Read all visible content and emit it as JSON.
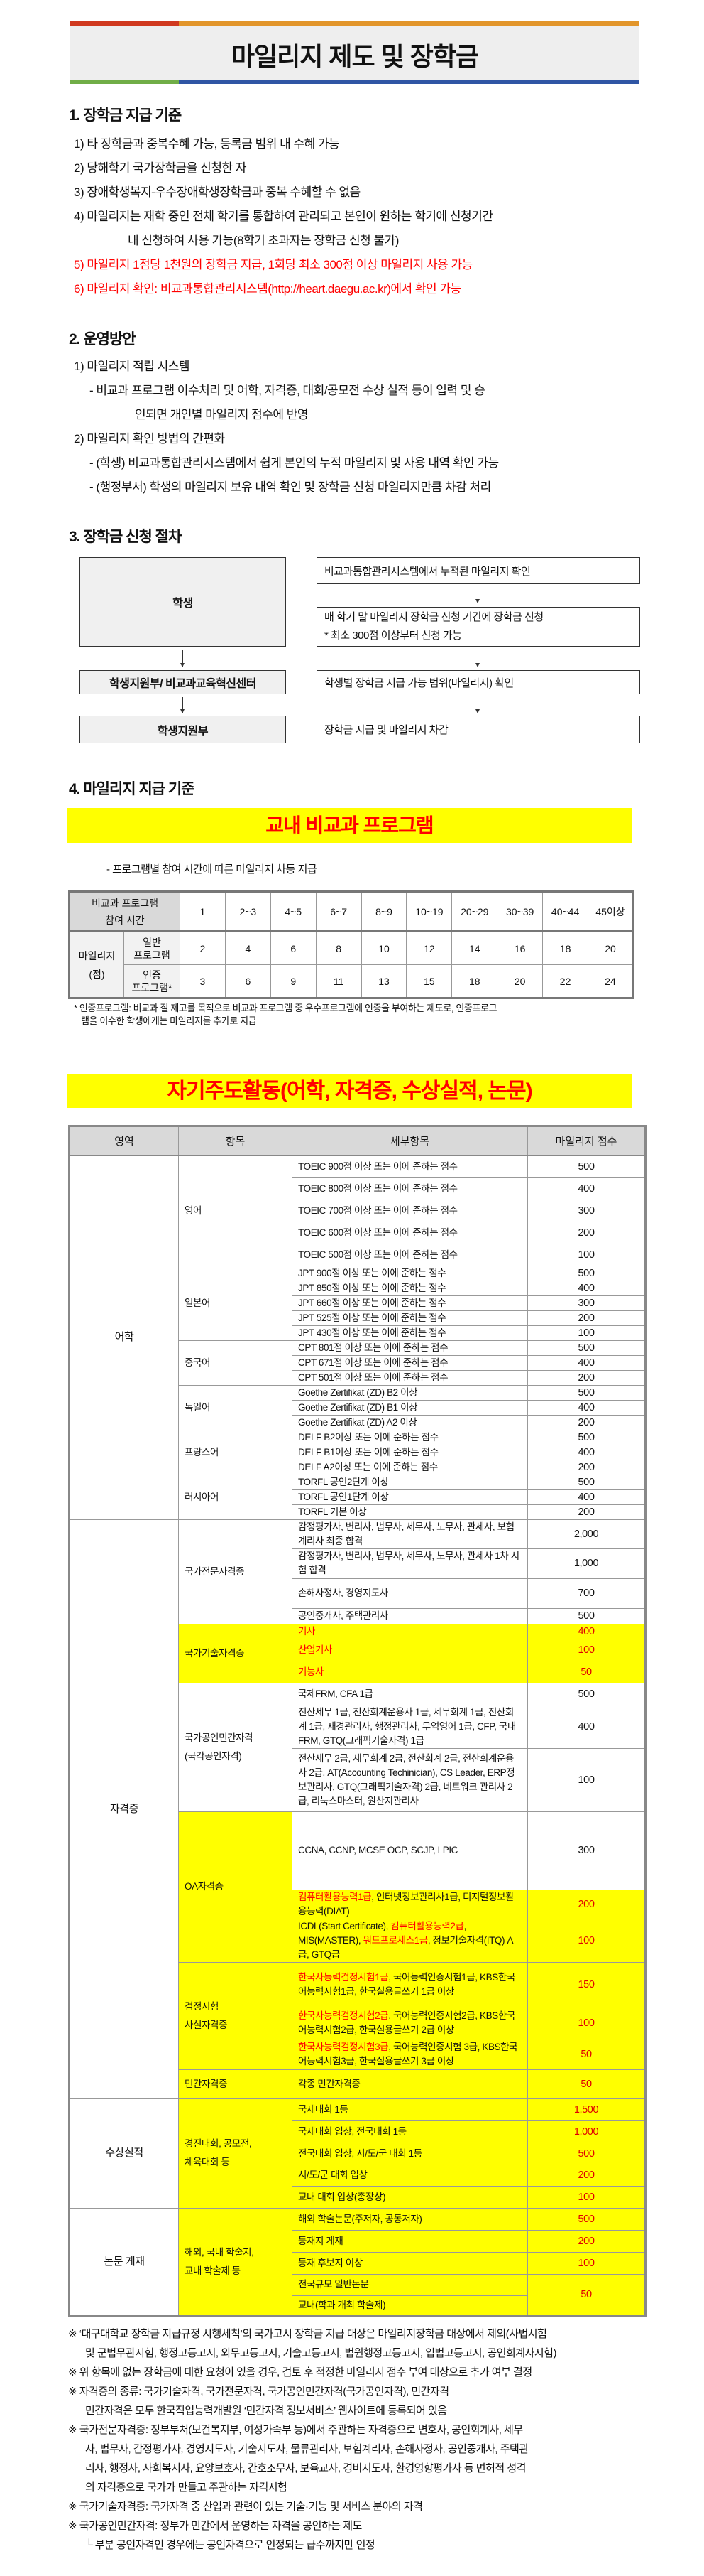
{
  "title": "마일리지 제도 및 장학금",
  "colors": {
    "bar_red": "#d0391f",
    "bar_orange": "#e2952a",
    "bar_green": "#70ad47",
    "bar_blue": "#2f55a4",
    "highlight": "#ffff00",
    "accent_red": "#ff0000"
  },
  "section1": {
    "heading": "1. 장학금 지급 기준",
    "items": [
      {
        "text": "1) 타 장학금과 중복수혜 가능, 등록금 범위 내 수혜 가능",
        "red": false
      },
      {
        "text": "2) 당해학기 국가장학금을 신청한 자",
        "red": false
      },
      {
        "text": "3) 장애학생복지-우수장애학생장학금과 중복 수혜할 수 없음",
        "red": false
      },
      {
        "text": "4) 마일리지는 재학 중인 전체 학기를 통합하여 관리되고 본인이 원하는 학기에 신청기간",
        "cont": "내 신청하여 사용 가능(8학기 초과자는 장학금 신청 불가)",
        "red": false
      },
      {
        "text": "5) 마일리지 1점당 1천원의 장학금 지급, 1회당 최소 300점 이상 마일리지 사용 가능",
        "red": true
      },
      {
        "text": "6) 마일리지 확인: 비교과통합관리시스템(http://heart.daegu.ac.kr)에서 확인 가능",
        "red": true
      }
    ]
  },
  "section2": {
    "heading": "2. 운영방안",
    "lines": [
      {
        "text": "1) 마일리지 적립 시스템",
        "level": 1
      },
      {
        "text": "- 비교과 프로그램 이수처리 및 어학, 자격증, 대회/공모전 수상 실적 등이 입력 및 승",
        "level": 2
      },
      {
        "text": "인되면 개인별 마일리지 점수에 반영",
        "level": 3
      },
      {
        "text": "2) 마일리지 확인 방법의 간편화",
        "level": 1
      },
      {
        "text": "- (학생) 비교과통합관리시스템에서 쉽게 본인의 누적 마일리지 및 사용 내역 확인 가능",
        "level": 2
      },
      {
        "text": "- (행정부서) 학생의 마일리지 보유 내역 확인 및 장학금 신청 마일리지만큼 차감 처리",
        "level": 2
      }
    ]
  },
  "section3": {
    "heading": "3. 장학금 신청 절차",
    "left": [
      "학생",
      "학생지원부/ 비교과교육혁신센터",
      "학생지원부"
    ],
    "right": [
      [
        "비교과통합관리시스템에서 누적된 마일리지 확인"
      ],
      [
        "매 학기 말 마일리지 장학금 신청 기간에 장학금 신청",
        "* 최소 300점 이상부터 신청 가능"
      ],
      [
        "학생별 장학금 지급 가능 범위(마일리지) 확인"
      ],
      [
        "장학금 지급 및 마일리지 차감"
      ]
    ]
  },
  "section4": {
    "heading": "4. 마일리지 지급 기준",
    "program_banner": "교내 비교과 프로그램",
    "program_subtitle": "- 프로그램별 참여 시간에 따른 마일리지 차등 지급",
    "program_table": {
      "hours_label": [
        "비교과 프로그램",
        "참여 시간"
      ],
      "hours": [
        "1",
        "2~3",
        "4~5",
        "6~7",
        "8~9",
        "10~19",
        "20~29",
        "30~39",
        "40~44",
        "45이상"
      ],
      "mileage_label": [
        "마일리지",
        "(점)"
      ],
      "rows": [
        {
          "label": [
            "일반",
            "프로그램"
          ],
          "values": [
            "2",
            "4",
            "6",
            "8",
            "10",
            "12",
            "14",
            "16",
            "18",
            "20"
          ]
        },
        {
          "label": [
            "인증",
            "프로그램*"
          ],
          "values": [
            "3",
            "6",
            "9",
            "11",
            "13",
            "15",
            "18",
            "20",
            "22",
            "24"
          ]
        }
      ]
    },
    "program_footnote": [
      "* 인증프로그램: 비교과 질 제고를 목적으로 비교과 프로그램 중 우수프로그램에 인증을 부여하는 제도로, 인증프로그",
      "램을 이수한 학생에게는 마일리지를 추가로 지급"
    ],
    "self_banner": "자기주도활동(어학, 자격증, 수상실적, 논문)",
    "self_table": {
      "headers": [
        "영역",
        "항목",
        "세부항목",
        "마일리지 점수"
      ],
      "areas": [
        {
          "name": "어학",
          "items": [
            {
              "name": "영어",
              "rows": [
                {
                  "d": [
                    {
                      "t": "TOEIC 900점 이상 또는 이에 준하는 점수"
                    }
                  ],
                  "s": "500"
                },
                {
                  "d": [
                    {
                      "t": "TOEIC 800점 이상 또는 이에 준하는 점수"
                    }
                  ],
                  "s": "400"
                },
                {
                  "d": [
                    {
                      "t": "TOEIC 700점 이상 또는 이에 준하는 점수"
                    }
                  ],
                  "s": "300"
                },
                {
                  "d": [
                    {
                      "t": "TOEIC 600점 이상 또는 이에 준하는 점수"
                    }
                  ],
                  "s": "200"
                },
                {
                  "d": [
                    {
                      "t": "TOEIC 500점 이상 또는 이에 준하는 점수"
                    }
                  ],
                  "s": "100"
                }
              ]
            },
            {
              "name": "일본어",
              "rows": [
                {
                  "d": [
                    {
                      "t": "JPT 900점 이상 또는 이에 준하는 점수"
                    }
                  ],
                  "s": "500"
                },
                {
                  "d": [
                    {
                      "t": "JPT 850점 이상 또는 이에 준하는 점수"
                    }
                  ],
                  "s": "400"
                },
                {
                  "d": [
                    {
                      "t": "JPT 660점 이상 또는 이에 준하는 점수"
                    }
                  ],
                  "s": "300"
                },
                {
                  "d": [
                    {
                      "t": "JPT 525점 이상 또는 이에 준하는 점수"
                    }
                  ],
                  "s": "200"
                },
                {
                  "d": [
                    {
                      "t": "JPT 430점 이상 또는 이에 준하는 점수"
                    }
                  ],
                  "s": "100"
                }
              ]
            },
            {
              "name": "중국어",
              "rows": [
                {
                  "d": [
                    {
                      "t": "CPT 801점 이상 또는 이에 준하는 점수"
                    }
                  ],
                  "s": "500"
                },
                {
                  "d": [
                    {
                      "t": "CPT 671점 이상 또는 이에 준하는 점수"
                    }
                  ],
                  "s": "400"
                },
                {
                  "d": [
                    {
                      "t": "CPT 501점 이상 또는 이에 준하는 점수"
                    }
                  ],
                  "s": "200"
                }
              ]
            },
            {
              "name": "독일어",
              "rows": [
                {
                  "d": [
                    {
                      "t": "Goethe Zertifikat (ZD) B2 이상"
                    }
                  ],
                  "s": "500"
                },
                {
                  "d": [
                    {
                      "t": "Goethe Zertifikat (ZD) B1 이상"
                    }
                  ],
                  "s": "400"
                },
                {
                  "d": [
                    {
                      "t": "Goethe Zertifikat (ZD) A2 이상"
                    }
                  ],
                  "s": "200"
                }
              ]
            },
            {
              "name": "프랑스어",
              "rows": [
                {
                  "d": [
                    {
                      "t": "DELF B2이상 또는 이에 준하는 점수"
                    }
                  ],
                  "s": "500"
                },
                {
                  "d": [
                    {
                      "t": "DELF B1이상 또는 이에 준하는 점수"
                    }
                  ],
                  "s": "400"
                },
                {
                  "d": [
                    {
                      "t": "DELF A2이상 또는 이에 준하는 점수"
                    }
                  ],
                  "s": "200"
                }
              ]
            },
            {
              "name": "러시아어",
              "rows": [
                {
                  "d": [
                    {
                      "t": "TORFL 공인2단계 이상"
                    }
                  ],
                  "s": "500"
                },
                {
                  "d": [
                    {
                      "t": "TORFL 공인1단계 이상"
                    }
                  ],
                  "s": "400"
                },
                {
                  "d": [
                    {
                      "t": "TORFL 기본 이상"
                    }
                  ],
                  "s": "200"
                }
              ]
            }
          ]
        },
        {
          "name": "자격증",
          "items": [
            {
              "name": "국가전문자격증",
              "rows": [
                {
                  "d": [
                    {
                      "t": "감정평가사, 변리사, 법무사, 세무사, 노무사, 관세사, 보험계리사 최종 합격"
                    }
                  ],
                  "s": "2,000"
                },
                {
                  "d": [
                    {
                      "t": "감정평가사, 변리사, 법무사, 세무사, 노무사, 관세사 1차 시험 합격"
                    }
                  ],
                  "s": "1,000"
                },
                {
                  "d": [
                    {
                      "t": "손해사정사, 경영지도사"
                    }
                  ],
                  "s": "700"
                },
                {
                  "d": [
                    {
                      "t": "공인중개사, 주택관리사"
                    }
                  ],
                  "s": "500"
                }
              ]
            },
            {
              "name": "국가기술자격증",
              "yellow": true,
              "rows": [
                {
                  "d": [
                    {
                      "t": "기사",
                      "red": true
                    }
                  ],
                  "s": "400",
                  "yellow": true
                },
                {
                  "d": [
                    {
                      "t": "산업기사",
                      "red": true
                    }
                  ],
                  "s": "100",
                  "yellow": true
                },
                {
                  "d": [
                    {
                      "t": "기능사",
                      "red": true
                    }
                  ],
                  "s": "50",
                  "yellow": true
                }
              ]
            },
            {
              "name": "국가공인민간자격\n(국각공인자격)",
              "rows": [
                {
                  "d": [
                    {
                      "t": "국제FRM, CFA 1급"
                    }
                  ],
                  "s": "500"
                },
                {
                  "d": [
                    {
                      "t": "전산세무 1급, 전산회계운용사 1급, 세무회계 1급, 전산회계 1급, 재경관리사, 행정관리사, 무역영어 1급, CFP, 국내FRM, GTQ(그래픽기술자격) 1급"
                    }
                  ],
                  "s": "400"
                },
                {
                  "d": [
                    {
                      "t": "전산세무 2급, 세무회계 2급, 전산회계 2급, 전산회계운용사 2급, AT(Accounting Techinician), CS Leader, ERP정보관리사, GTQ(그래픽기술자격) 2급, 네트워크 관리사 2급, 리눅스마스터, 원산지관리사"
                    }
                  ],
                  "s": "100"
                }
              ]
            },
            {
              "name": "OA자격증",
              "yellow": true,
              "rows": [
                {
                  "d": [
                    {
                      "t": "CCNA, CCNP, MCSE OCP, SCJP, LPIC"
                    }
                  ],
                  "s": "300"
                },
                {
                  "d": [
                    {
                      "t": "컴퓨터활용능력1급",
                      "red": true
                    },
                    {
                      "t": ", 인터넷정보관리사1급, 디지털정보활용능력(DIAT)"
                    }
                  ],
                  "s": "200",
                  "yellow": true
                },
                {
                  "d": [
                    {
                      "t": "ICDL(Start Certificate), "
                    },
                    {
                      "t": "컴퓨터활용능력2급",
                      "red": true
                    },
                    {
                      "t": ", MIS(MASTER), "
                    },
                    {
                      "t": "워드프로세스1급",
                      "red": true
                    },
                    {
                      "t": ", 정보기술자격(ITQ) A급, GTQ급"
                    }
                  ],
                  "s": "100",
                  "yellow": true
                }
              ]
            },
            {
              "name": "검정시험\n사설자격증",
              "yellow": true,
              "rows": [
                {
                  "d": [
                    {
                      "t": "한국사능력검정시험1급",
                      "red": true
                    },
                    {
                      "t": ", 국어능력인증시험1급, KBS한국어능력시험1급, 한국실용글쓰기 1급 이상"
                    }
                  ],
                  "s": "150",
                  "yellow": true
                },
                {
                  "d": [
                    {
                      "t": "한국사능력검정시험2급",
                      "red": true
                    },
                    {
                      "t": ", 국어능력인증시험2급, KBS한국어능력시험2급, 한국실용글쓰기 2급 이상"
                    }
                  ],
                  "s": "100",
                  "yellow": true
                },
                {
                  "d": [
                    {
                      "t": "한국사능력검정시험3급",
                      "red": true
                    },
                    {
                      "t": ", 국어능력인증시험 3급, KBS한국어능력시험3급, 한국실용글쓰기 3급 이상"
                    }
                  ],
                  "s": "50",
                  "yellow": true
                }
              ]
            },
            {
              "name": "민간자격증",
              "yellow": true,
              "rows": [
                {
                  "d": [
                    {
                      "t": "각종 민간자격증"
                    }
                  ],
                  "s": "50",
                  "yellow": true
                }
              ]
            }
          ]
        },
        {
          "name": "수상실적",
          "items": [
            {
              "name": "경진대회, 공모전,\n체육대회 등",
              "yellow": true,
              "rows": [
                {
                  "d": [
                    {
                      "t": "국제대회 1등"
                    }
                  ],
                  "s": "1,500",
                  "yellow": true
                },
                {
                  "d": [
                    {
                      "t": "국제대회 입상, 전국대회 1등"
                    }
                  ],
                  "s": "1,000",
                  "yellow": true
                },
                {
                  "d": [
                    {
                      "t": "전국대회 입상, 시/도/군 대회 1등"
                    }
                  ],
                  "s": "500",
                  "yellow": true
                },
                {
                  "d": [
                    {
                      "t": "시/도/군 대회 입상"
                    }
                  ],
                  "s": "200",
                  "yellow": true
                },
                {
                  "d": [
                    {
                      "t": "교내 대회 입상(총장상)"
                    }
                  ],
                  "s": "100",
                  "yellow": true
                }
              ]
            }
          ]
        },
        {
          "name": "논문 게재",
          "items": [
            {
              "name": "해외, 국내 학술지,\n교내 학술제 등",
              "yellow": true,
              "rows": [
                {
                  "d": [
                    {
                      "t": "해외 학술논문(주저자, 공동저자)"
                    }
                  ],
                  "s": "500",
                  "yellow": true
                },
                {
                  "d": [
                    {
                      "t": "등재지 게재"
                    }
                  ],
                  "s": "200",
                  "yellow": true
                },
                {
                  "d": [
                    {
                      "t": "등재 후보지 이상"
                    }
                  ],
                  "s": "100",
                  "yellow": true
                },
                {
                  "d": [
                    {
                      "t": "전국규모 일반논문"
                    }
                  ],
                  "s": "50",
                  "score_rows": 2,
                  "yellow": true
                },
                {
                  "d": [
                    {
                      "t": "교내(학과 개최 학술제)"
                    }
                  ],
                  "yellow": true
                }
              ]
            }
          ]
        }
      ]
    },
    "notes": [
      [
        "※ ‘대구대학교 장학금 지급규정 시행세칙’의 국가고시 장학금 지급 대상은 마일리지장학금 대상에서 제외(사법시험",
        "및 군법무관시험, 행정고등고시, 외무고등고시, 기술고등고시, 법원행정고등고시, 입법고등고시, 공인회계사시험)"
      ],
      [
        "※ 위 항목에 없는 장학금에 대한 요청이 있을 경우, 검토 후 적정한 마일리지 점수 부여 대상으로 추가 여부 결정"
      ],
      [
        "※ 자격증의 종류: 국가기술자격, 국가전문자격, 국가공인민간자격(국가공인자격), 민간자격",
        "민간자격은 모두 한국직업능력개발원 ‘민간자격 정보서비스’ 웹사이트에 등록되어 있음"
      ],
      [
        "※ 국가전문자격증: 정부부처(보건복지부, 여성가족부 등)에서 주관하는 자격증으로 변호사, 공인회계사, 세무",
        "사, 법무사, 감정평가사, 경영지도사, 기술지도사, 물류관리사, 보험계리사, 손해사정사, 공인중개사, 주택관",
        "리사, 행정사, 사회복지사, 요양보호사, 간호조무사, 보육교사, 경비지도사, 환경영향평가사 등 면허적 성격",
        "의 자격증으로 국가가 만들고 주관하는 자격시험"
      ],
      [
        "※ 국가기술자격증: 국가자격 중 산업과 관련이 있는 기술·기능 및 서비스 분야의 자격"
      ],
      [
        "※ 국가공인민간자격: 정부가 민간에서 운영하는 자격을 공인하는 제도",
        "└ 부분 공인자격인 경우에는 공인자격으로 인정되는 급수까지만 인정"
      ]
    ]
  }
}
